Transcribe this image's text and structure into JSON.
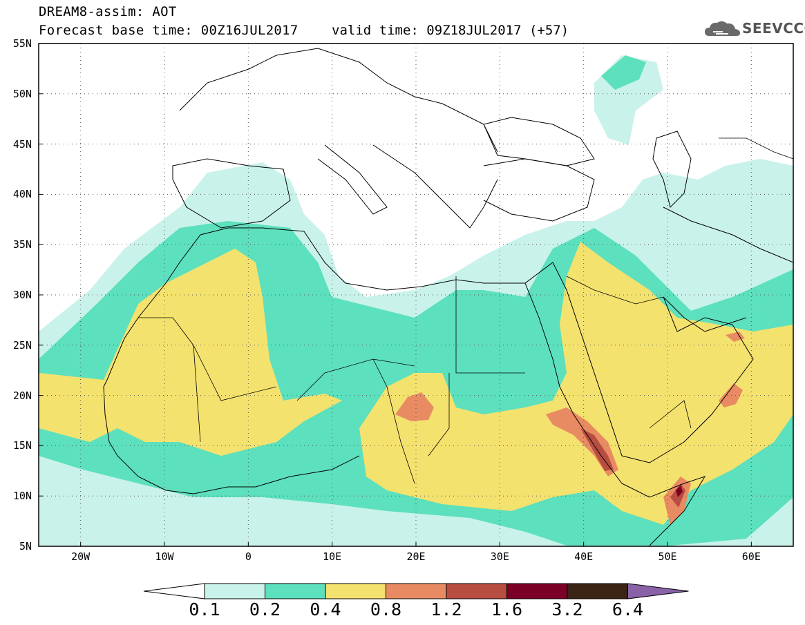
{
  "header": {
    "title": "DREAM8-assim: AOT",
    "base_time": "Forecast base time: 00Z16JUL2017",
    "valid_time": "valid time: 09Z18JUL2017 (+57)"
  },
  "logo": {
    "text": "SEEVCCC",
    "icon": "cloud-icon"
  },
  "axes": {
    "lat_labels": [
      "55N",
      "50N",
      "45N",
      "40N",
      "35N",
      "30N",
      "25N",
      "20N",
      "15N",
      "10N",
      "5N"
    ],
    "lon_labels": [
      "20W",
      "10W",
      "0",
      "10E",
      "20E",
      "30E",
      "40E",
      "50E",
      "60E"
    ],
    "lat_range": [
      5,
      55
    ],
    "lon_range": [
      -25,
      65
    ],
    "grid": "dotted"
  },
  "colorbar": {
    "labels": [
      "0.1",
      "0.2",
      "0.4",
      "0.8",
      "1.2",
      "1.6",
      "3.2",
      "6.4"
    ],
    "colors": [
      "#c9f2ea",
      "#5de0bd",
      "#f4e26e",
      "#e98b62",
      "#b84d41",
      "#7b0026",
      "#3b2414",
      "#8a62a8"
    ]
  }
}
